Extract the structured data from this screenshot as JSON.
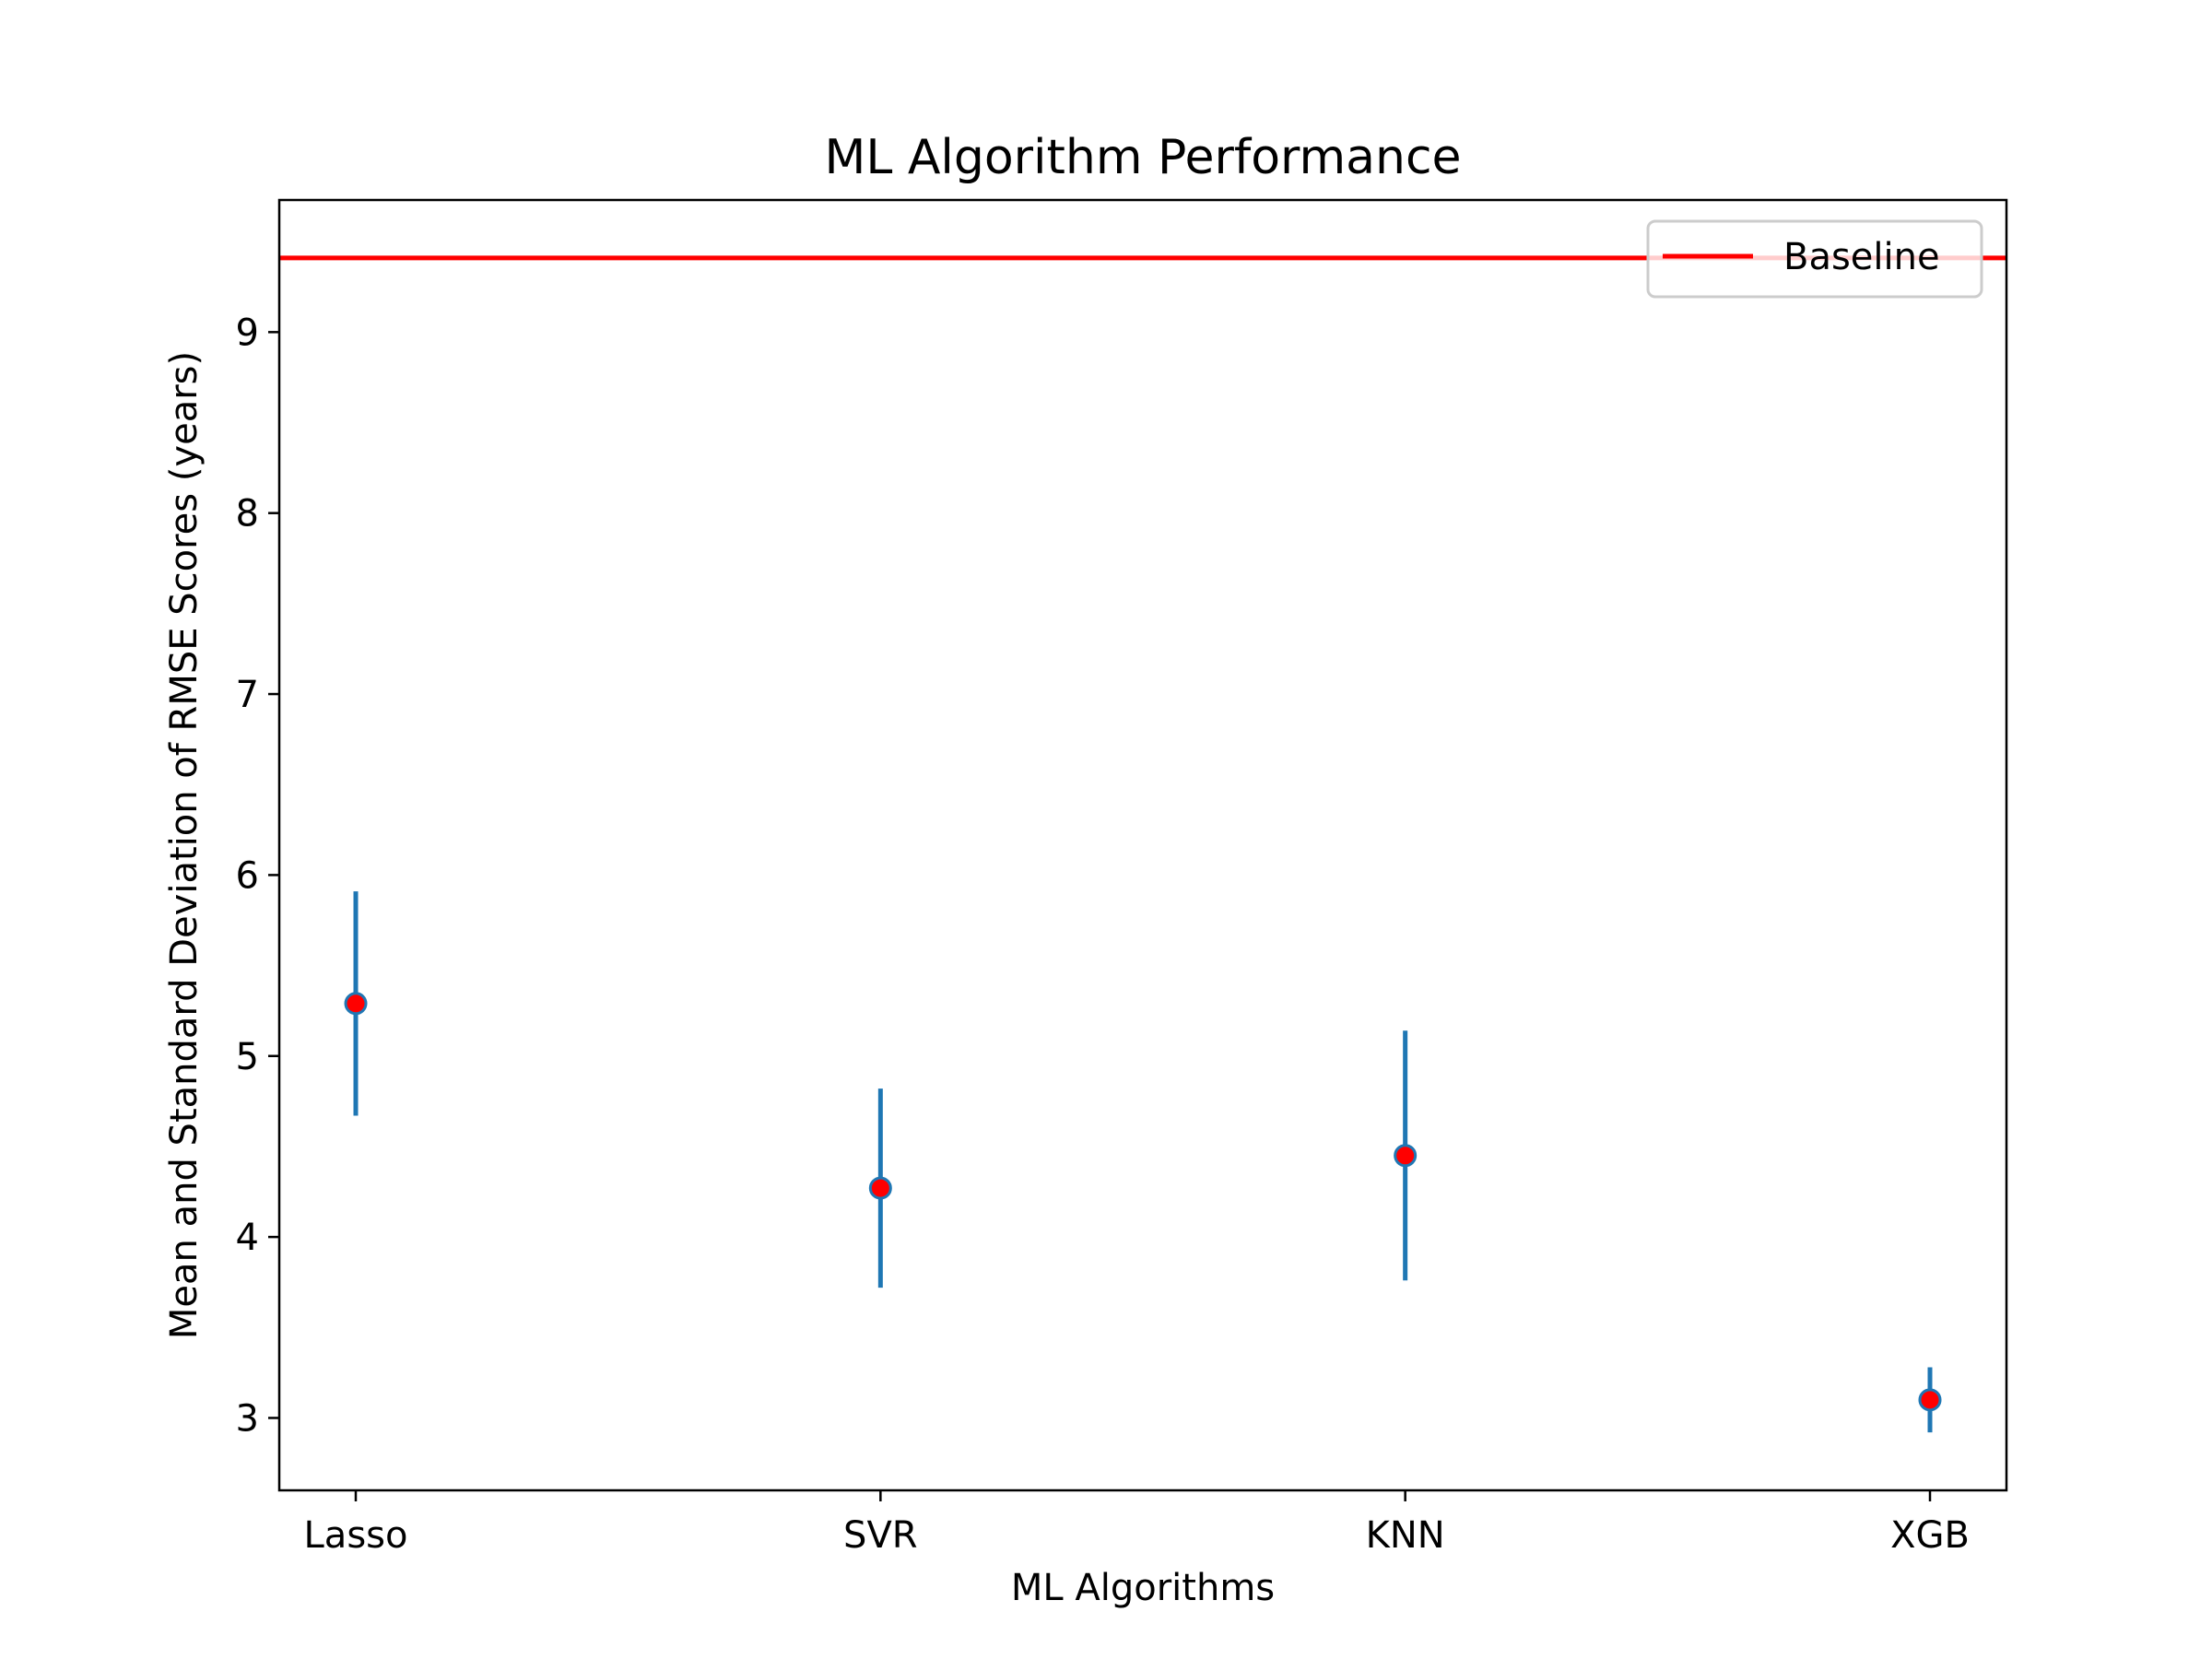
{
  "chart_data": {
    "type": "scatter",
    "title": "ML Algorithm Performance",
    "xlabel": "ML Algorithms",
    "ylabel": "Mean and Standard Deviation of RMSE Scores (years)",
    "categories": [
      "Lasso",
      "SVR",
      "KNN",
      "XGB"
    ],
    "means": [
      5.29,
      4.27,
      4.45,
      3.1
    ],
    "std": [
      0.62,
      0.55,
      0.69,
      0.18
    ],
    "baseline": {
      "name": "Baseline",
      "value": 9.41
    },
    "ylim": [
      2.6,
      9.73
    ],
    "yticks": [
      3,
      4,
      5,
      6,
      7,
      8,
      9
    ],
    "grid": false,
    "legend_position": "top-right",
    "colors": {
      "errorbar": "#1f77b4",
      "marker_fill": "#ff0000",
      "marker_edge": "#1f77b4",
      "baseline": "#ff0000",
      "axes": "#000000"
    }
  }
}
